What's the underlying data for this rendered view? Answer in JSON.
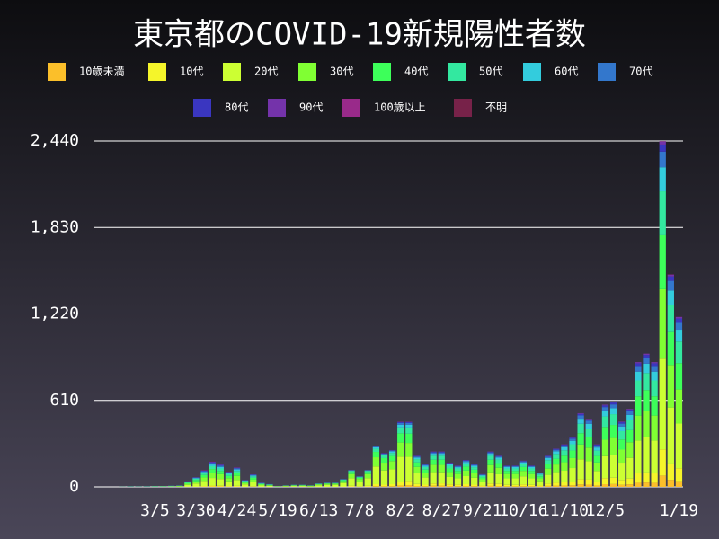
{
  "chart_data": {
    "type": "stacked_bar",
    "title": "東京都のCOVID-19新規陽性者数",
    "categories": [
      null,
      null,
      null,
      null,
      null,
      null,
      null,
      null,
      "3/5",
      null,
      null,
      null,
      null,
      "3/30",
      null,
      null,
      null,
      null,
      "4/24",
      null,
      null,
      null,
      null,
      "5/19",
      null,
      null,
      null,
      null,
      "6/13",
      null,
      null,
      null,
      null,
      "7/8",
      null,
      null,
      null,
      null,
      "8/2",
      null,
      null,
      null,
      null,
      "8/27",
      null,
      null,
      null,
      null,
      "9/21",
      null,
      null,
      null,
      null,
      "10/16",
      null,
      null,
      null,
      null,
      "11/10",
      null,
      null,
      null,
      null,
      "12/5",
      null,
      null,
      null,
      null,
      null,
      null,
      null,
      null,
      "1/19"
    ],
    "series": [
      {
        "name": "10歳未満",
        "color": "#fbbf2a",
        "values": [
          0,
          0,
          0,
          0,
          0,
          0,
          0,
          0,
          0,
          0,
          0,
          0,
          1,
          1,
          2,
          3,
          3,
          2,
          2,
          1,
          2,
          0,
          0,
          0,
          0,
          0,
          0,
          0,
          0,
          0,
          0,
          1,
          2,
          1,
          2,
          5,
          4,
          5,
          10,
          12,
          6,
          5,
          8,
          8,
          6,
          5,
          6,
          5,
          3,
          7,
          6,
          4,
          4,
          5,
          4,
          3,
          7,
          9,
          10,
          11,
          17,
          16,
          10,
          19,
          20,
          15,
          18,
          29,
          31,
          29,
          80,
          50,
          40
        ]
      },
      {
        "name": "10代",
        "color": "#f5f52a",
        "values": [
          0,
          0,
          0,
          0,
          0,
          0,
          0,
          0,
          0,
          0,
          0,
          0,
          1,
          2,
          4,
          6,
          5,
          4,
          5,
          2,
          3,
          1,
          1,
          0,
          0,
          1,
          1,
          0,
          1,
          1,
          1,
          2,
          5,
          3,
          5,
          14,
          12,
          14,
          28,
          30,
          14,
          11,
          16,
          17,
          12,
          10,
          13,
          11,
          6,
          17,
          15,
          10,
          10,
          13,
          10,
          7,
          16,
          20,
          22,
          26,
          38,
          35,
          22,
          43,
          45,
          34,
          41,
          66,
          71,
          66,
          185,
          115,
          92
        ]
      },
      {
        "name": "20代",
        "color": "#ccff33",
        "values": [
          0,
          0,
          0,
          0,
          0,
          0,
          0,
          0,
          1,
          1,
          2,
          3,
          12,
          21,
          36,
          54,
          48,
          33,
          42,
          15,
          27,
          9,
          6,
          2,
          4,
          5,
          5,
          4,
          10,
          13,
          13,
          24,
          55,
          34,
          55,
          125,
          100,
          105,
          175,
          170,
          75,
          50,
          80,
          78,
          52,
          45,
          57,
          48,
          27,
          78,
          68,
          46,
          46,
          57,
          46,
          30,
          62,
          75,
          82,
          96,
          140,
          130,
          80,
          155,
          160,
          122,
          146,
          232,
          248,
          232,
          640,
          395,
          315
        ]
      },
      {
        "name": "30代",
        "color": "#80ff33",
        "values": [
          0,
          0,
          0,
          0,
          0,
          0,
          0,
          0,
          1,
          1,
          1,
          2,
          8,
          15,
          25,
          38,
          34,
          23,
          29,
          10,
          19,
          6,
          4,
          1,
          2,
          3,
          3,
          2,
          6,
          7,
          7,
          13,
          28,
          18,
          28,
          65,
          55,
          58,
          100,
          98,
          46,
          33,
          52,
          52,
          35,
          31,
          39,
          33,
          18,
          52,
          46,
          31,
          31,
          38,
          31,
          20,
          44,
          54,
          60,
          70,
          104,
          96,
          60,
          116,
          120,
          92,
          110,
          176,
          188,
          176,
          490,
          300,
          240
        ]
      },
      {
        "name": "40代",
        "color": "#3dff5a",
        "values": [
          0,
          0,
          0,
          0,
          0,
          1,
          1,
          1,
          1,
          1,
          1,
          2,
          6,
          10,
          17,
          25,
          22,
          15,
          20,
          7,
          13,
          4,
          3,
          1,
          2,
          2,
          2,
          2,
          3,
          4,
          4,
          7,
          15,
          9,
          15,
          38,
          32,
          36,
          65,
          66,
          32,
          23,
          36,
          37,
          25,
          22,
          28,
          24,
          13,
          37,
          33,
          22,
          22,
          27,
          22,
          15,
          33,
          41,
          46,
          54,
          80,
          74,
          46,
          90,
          92,
          71,
          85,
          136,
          145,
          136,
          380,
          232,
          186
        ]
      },
      {
        "name": "50代",
        "color": "#33e8a0",
        "values": [
          0,
          0,
          0,
          0,
          1,
          1,
          0,
          1,
          1,
          1,
          2,
          1,
          5,
          8,
          13,
          20,
          18,
          12,
          15,
          6,
          10,
          4,
          2,
          1,
          1,
          2,
          2,
          1,
          2,
          2,
          2,
          4,
          8,
          5,
          8,
          22,
          19,
          22,
          42,
          43,
          23,
          18,
          28,
          28,
          19,
          17,
          22,
          18,
          10,
          28,
          25,
          17,
          17,
          21,
          17,
          12,
          27,
          34,
          38,
          44,
          66,
          61,
          38,
          74,
          76,
          59,
          70,
          112,
          120,
          112,
          310,
          190,
          152
        ]
      },
      {
        "name": "60代",
        "color": "#33ccdd",
        "values": [
          0,
          0,
          0,
          0,
          0,
          1,
          1,
          1,
          1,
          1,
          1,
          1,
          3,
          5,
          8,
          12,
          11,
          8,
          10,
          3,
          6,
          2,
          2,
          0,
          1,
          1,
          1,
          1,
          1,
          1,
          1,
          2,
          3,
          2,
          3,
          10,
          8,
          10,
          18,
          19,
          11,
          9,
          14,
          14,
          10,
          9,
          11,
          10,
          6,
          15,
          13,
          10,
          10,
          12,
          10,
          6,
          15,
          18,
          21,
          24,
          36,
          33,
          22,
          40,
          42,
          32,
          38,
          62,
          66,
          62,
          170,
          104,
          84
        ]
      },
      {
        "name": "70代",
        "color": "#3377cc",
        "values": [
          0,
          0,
          0,
          0,
          0,
          0,
          0,
          0,
          1,
          0,
          1,
          1,
          2,
          4,
          6,
          10,
          9,
          6,
          8,
          3,
          5,
          2,
          1,
          0,
          0,
          1,
          1,
          0,
          1,
          1,
          1,
          1,
          2,
          1,
          2,
          5,
          5,
          6,
          12,
          12,
          7,
          6,
          9,
          9,
          6,
          6,
          8,
          6,
          4,
          9,
          8,
          6,
          6,
          7,
          6,
          4,
          9,
          11,
          13,
          15,
          23,
          21,
          14,
          26,
          27,
          21,
          25,
          40,
          42,
          40,
          110,
          68,
          54
        ]
      },
      {
        "name": "80代",
        "color": "#3a36c0",
        "values": [
          0,
          0,
          0,
          0,
          0,
          0,
          0,
          0,
          0,
          0,
          0,
          0,
          1,
          2,
          4,
          6,
          5,
          3,
          4,
          1,
          3,
          1,
          1,
          0,
          0,
          0,
          0,
          0,
          1,
          1,
          1,
          1,
          1,
          1,
          1,
          3,
          3,
          3,
          6,
          6,
          4,
          3,
          5,
          5,
          3,
          3,
          4,
          3,
          2,
          5,
          4,
          3,
          3,
          3,
          3,
          2,
          5,
          6,
          6,
          7,
          11,
          10,
          6,
          12,
          13,
          10,
          12,
          19,
          20,
          19,
          50,
          31,
          25
        ]
      },
      {
        "name": "90代",
        "color": "#7433aa",
        "values": [
          0,
          0,
          0,
          0,
          0,
          0,
          0,
          0,
          0,
          0,
          0,
          0,
          1,
          1,
          3,
          4,
          3,
          2,
          3,
          1,
          1,
          1,
          0,
          0,
          0,
          0,
          0,
          0,
          0,
          0,
          0,
          0,
          1,
          1,
          1,
          2,
          1,
          1,
          3,
          3,
          2,
          2,
          2,
          2,
          2,
          2,
          2,
          2,
          1,
          2,
          2,
          1,
          1,
          2,
          1,
          1,
          2,
          2,
          2,
          3,
          5,
          4,
          2,
          5,
          5,
          4,
          5,
          8,
          9,
          8,
          22,
          13,
          11
        ]
      },
      {
        "name": "100歳以上",
        "color": "#992a8a",
        "values": [
          0,
          0,
          0,
          0,
          0,
          0,
          0,
          0,
          0,
          0,
          0,
          0,
          0,
          0,
          0,
          0,
          0,
          0,
          0,
          0,
          0,
          0,
          0,
          0,
          0,
          0,
          0,
          0,
          0,
          0,
          0,
          0,
          0,
          0,
          0,
          0,
          0,
          0,
          0,
          0,
          0,
          0,
          0,
          0,
          0,
          0,
          0,
          0,
          0,
          0,
          0,
          0,
          0,
          0,
          0,
          0,
          0,
          0,
          0,
          0,
          0,
          0,
          0,
          0,
          0,
          0,
          0,
          0,
          0,
          0,
          1,
          0,
          0
        ]
      },
      {
        "name": "不明",
        "color": "#772249",
        "values": [
          0,
          0,
          0,
          0,
          0,
          0,
          0,
          0,
          0,
          0,
          0,
          0,
          0,
          1,
          2,
          2,
          2,
          2,
          2,
          1,
          1,
          0,
          0,
          0,
          0,
          0,
          0,
          0,
          0,
          0,
          0,
          0,
          0,
          0,
          0,
          1,
          1,
          0,
          1,
          1,
          0,
          0,
          0,
          0,
          0,
          0,
          0,
          0,
          0,
          0,
          0,
          0,
          0,
          0,
          0,
          0,
          0,
          0,
          0,
          0,
          0,
          0,
          0,
          0,
          0,
          0,
          0,
          0,
          0,
          0,
          2,
          2,
          1
        ]
      }
    ],
    "ylim": [
      0,
      2440
    ],
    "yticks": [
      0,
      610,
      {
        "value": 1220,
        "label": "1,220"
      },
      {
        "value": 1830,
        "label": "1,830"
      },
      {
        "value": 2440,
        "label": "2,440"
      }
    ],
    "grid": true
  }
}
